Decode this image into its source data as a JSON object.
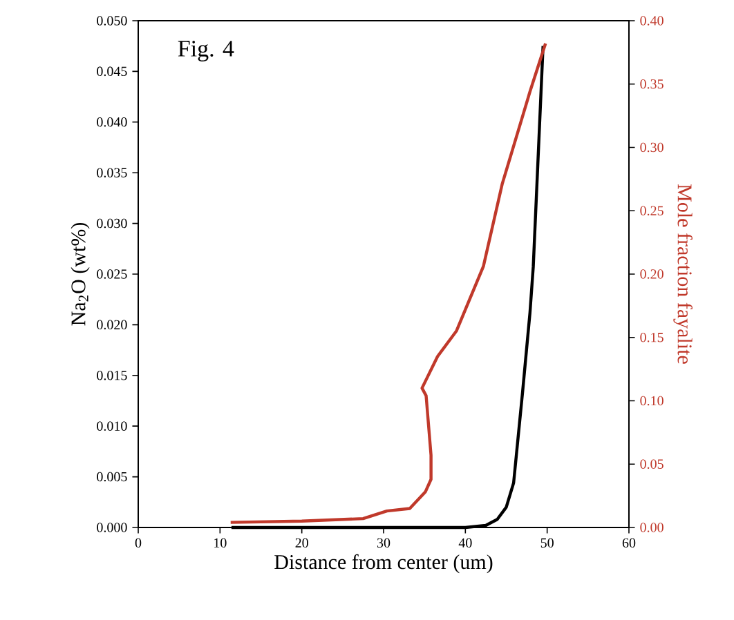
{
  "chart_data": {
    "type": "line",
    "xlabel": "Distance from center (um)",
    "ylabel": "Na$_{2}$O (wt%)",
    "y2label": "Mole fraction fayalite",
    "annotations": [
      "Fig. 4"
    ],
    "xlim": [
      0,
      60
    ],
    "xticks": [
      0,
      10,
      20,
      30,
      40,
      50,
      60
    ],
    "ylim": [
      0,
      0.05
    ],
    "yticks": [
      {
        "value": 0,
        "label": "0.000"
      },
      {
        "value": 0.005,
        "label": "0.005"
      },
      {
        "value": 0.01,
        "label": "0.010"
      },
      {
        "value": 0.015,
        "label": "0.015"
      },
      {
        "value": 0.02,
        "label": "0.020"
      },
      {
        "value": 0.025,
        "label": "0.025"
      },
      {
        "value": 0.03,
        "label": "0.030"
      },
      {
        "value": 0.035,
        "label": "0.035"
      },
      {
        "value": 0.04,
        "label": "0.040"
      },
      {
        "value": 0.045,
        "label": "0.045"
      },
      {
        "value": 0.05,
        "label": "0.050"
      }
    ],
    "y2lim": [
      0,
      0.4
    ],
    "y2ticks": [
      {
        "value": 0,
        "label": "0.00"
      },
      {
        "value": 0.05,
        "label": "0.05"
      },
      {
        "value": 0.1,
        "label": "0.10"
      },
      {
        "value": 0.15,
        "label": "0.15"
      },
      {
        "value": 0.2,
        "label": "0.20"
      },
      {
        "value": 0.25,
        "label": "0.25"
      },
      {
        "value": 0.3,
        "label": "0.30"
      },
      {
        "value": 0.35,
        "label": "0.35"
      },
      {
        "value": 0.4,
        "label": "0.40"
      }
    ],
    "grid": false,
    "marker": "none",
    "line_style": "solid",
    "series": [
      {
        "color": "#000000",
        "axis": "y",
        "x": [
          11.4,
          20,
          30,
          40,
          42.5,
          43.9,
          45,
          45.9,
          47.0,
          47.9,
          48.3,
          49.0,
          49.5
        ],
        "values": [
          0,
          0,
          0,
          0,
          0.0002,
          0.0008,
          0.002,
          0.0044,
          0.0134,
          0.0212,
          0.0257,
          0.0384,
          0.0475
        ]
      },
      {
        "color": "#c0392b",
        "axis": "y2",
        "x": [
          11.3,
          20,
          27.5,
          30.4,
          33.2,
          35.1,
          35.8,
          35.8,
          35.2,
          34.7,
          36.6,
          38.9,
          42.2,
          44.5,
          47.9,
          49.8
        ],
        "values": [
          0.004,
          0.005,
          0.007,
          0.013,
          0.015,
          0.028,
          0.038,
          0.057,
          0.104,
          0.11,
          0.135,
          0.155,
          0.206,
          0.271,
          0.344,
          0.382
        ]
      }
    ]
  }
}
